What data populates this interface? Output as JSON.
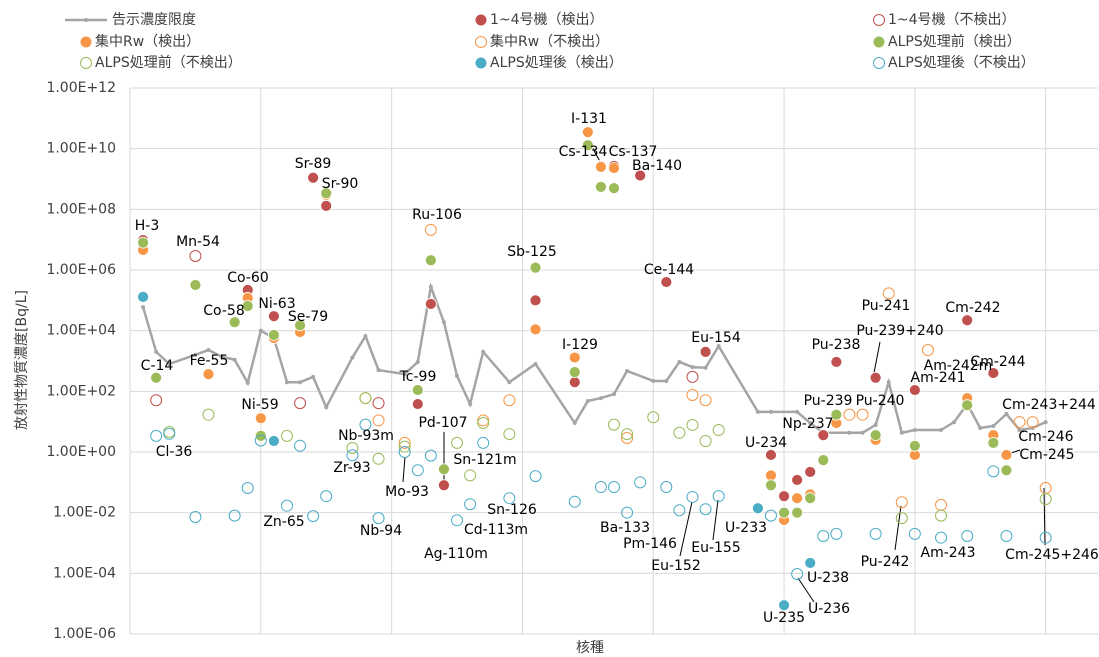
{
  "chart_data": {
    "type": "scatter",
    "yscale": "log",
    "x_label": "核種",
    "y_label": "放射性物質濃度[Bq/L]",
    "xlim": [
      0,
      74
    ],
    "xticks": [
      0,
      10,
      20,
      30,
      40,
      50,
      60,
      70
    ],
    "ylim": [
      1e-06,
      1000000000000.0
    ],
    "yticks": [
      {
        "value": 1e-06,
        "label": "1.00E-06"
      },
      {
        "value": 0.0001,
        "label": "1.00E-04"
      },
      {
        "value": 0.01,
        "label": "1.00E-02"
      },
      {
        "value": 1,
        "label": "1.00E+00"
      },
      {
        "value": 100,
        "label": "1.00E+02"
      },
      {
        "value": 10000,
        "label": "1.00E+04"
      },
      {
        "value": 1000000,
        "label": "1.00E+06"
      },
      {
        "value": 100000000,
        "label": "1.00E+08"
      },
      {
        "value": 10000000000,
        "label": "1.00E+10"
      },
      {
        "value": 1000000000000,
        "label": "1.00E+12"
      }
    ],
    "grid": true,
    "legend": "top",
    "series": [
      {
        "name": "告示濃度限度",
        "color": "#a5a5a5",
        "marker": "line",
        "x": [
          1,
          2,
          3,
          5,
          6,
          7,
          8,
          9,
          10,
          11,
          12,
          13,
          14,
          15,
          17,
          18,
          19,
          21,
          22,
          23,
          24,
          25,
          26,
          27,
          29,
          31,
          34,
          35,
          36,
          37,
          38,
          40,
          41,
          42,
          43,
          44,
          45,
          48,
          49,
          51,
          52,
          53,
          55,
          56,
          57,
          58,
          59,
          60,
          62,
          63,
          64,
          65,
          66,
          67,
          68,
          69,
          70
        ],
        "values": [
          60000.0,
          2000.0,
          800.0,
          1600.0,
          2300.0,
          1400.0,
          1100.0,
          190.0,
          10000.0,
          5700.0,
          200.0,
          200.0,
          300.0,
          30,
          1300.0,
          6600.0,
          500.0,
          370.0,
          930.0,
          280000.0,
          19000.0,
          320.0,
          38,
          2000.0,
          200.0,
          800.0,
          9,
          48,
          60,
          81,
          470.0,
          220.0,
          220.0,
          930.0,
          630.0,
          600.0,
          3100.0,
          21,
          21,
          21,
          9,
          4.3,
          4.3,
          4.3,
          7.8,
          200.0,
          4.3,
          5.3,
          5.3,
          9.7,
          38,
          6.2,
          7.2,
          18,
          5.3,
          6.2,
          9.7
        ]
      },
      {
        "name": "1~4号機（検出）",
        "color": "#c0504d",
        "marker": "filled",
        "x": [
          1,
          9,
          11,
          14,
          15,
          22,
          23,
          24,
          31,
          34,
          36,
          37,
          39,
          41,
          44,
          49,
          50,
          51,
          52,
          53,
          54,
          57,
          60,
          64,
          66
        ],
        "values": [
          9700000.0,
          220000.0,
          30000.0,
          1100000000.0,
          130000000.0,
          38,
          76000.0,
          0.08,
          100000.0,
          200.0,
          2700000000.0,
          2700000000.0,
          1300000000.0,
          400000.0,
          2000.0,
          0.8,
          0.035,
          0.12,
          0.22,
          3.6,
          930.0,
          280.0,
          110.0,
          22000.0,
          400.0
        ]
      },
      {
        "name": "1~4号機（不検出）",
        "color": "#c0504d",
        "marker": "open",
        "x": [
          2,
          5,
          13,
          19,
          43
        ],
        "values": [
          51,
          2900000.0,
          41,
          41,
          300.0
        ]
      },
      {
        "name": "集中Rw（検出）",
        "color": "#f79646",
        "marker": "filled",
        "x": [
          1,
          2,
          6,
          9,
          10,
          11,
          13,
          15,
          31,
          34,
          35,
          36,
          37,
          49,
          50,
          51,
          52,
          54,
          57,
          60,
          64,
          66,
          67
        ],
        "values": [
          4600000.0,
          280.0,
          370.0,
          120000.0,
          13,
          5700.0,
          9000.0,
          300000000.0,
          11000.0,
          1300.0,
          35000000000.0,
          2500000000.0,
          2300000000.0,
          0.17,
          0.0057,
          0.03,
          0.04,
          9,
          2.5,
          0.8,
          60,
          3.6,
          0.8
        ]
      },
      {
        "name": "集中Rw（不検出）",
        "color": "#f79646",
        "marker": "open",
        "x": [
          18,
          19,
          21,
          23,
          27,
          29,
          38,
          43,
          44,
          55,
          56,
          58,
          59,
          61,
          62,
          68,
          69,
          70
        ],
        "values": [
          60,
          11,
          2,
          21000000.0,
          11,
          51,
          2.9,
          76,
          51,
          17,
          17,
          170000.0,
          0.022,
          2300.0,
          0.018,
          9.7,
          9.7,
          0.065
        ]
      },
      {
        "name": "ALPS処理前（検出）",
        "color": "#9bbb59",
        "marker": "filled",
        "x": [
          1,
          2,
          5,
          8,
          9,
          10,
          11,
          13,
          15,
          22,
          23,
          24,
          31,
          34,
          35,
          36,
          37,
          49,
          50,
          51,
          52,
          53,
          54,
          57,
          60,
          64,
          66,
          67
        ],
        "values": [
          8000000.0,
          280.0,
          320000.0,
          19000.0,
          65000.0,
          3.4,
          7200.0,
          15000.0,
          340000000.0,
          110.0,
          2100000.0,
          0.27,
          1200000.0,
          430.0,
          13000000000.0,
          550000000.0,
          500000000.0,
          0.08,
          0.01,
          0.01,
          0.03,
          0.54,
          17,
          3.6,
          1.6,
          35,
          2,
          0.25
        ]
      },
      {
        "name": "ALPS処理前（不検出）",
        "color": "#9bbb59",
        "marker": "open",
        "x": [
          3,
          6,
          12,
          17,
          18,
          19,
          21,
          25,
          26,
          27,
          29,
          37,
          38,
          40,
          42,
          43,
          44,
          45,
          59,
          62,
          70
        ],
        "values": [
          4.6,
          17,
          3.4,
          1.35,
          60,
          0.6,
          1.5,
          2,
          0.17,
          9,
          3.9,
          8,
          3.9,
          14,
          4.3,
          7.8,
          2.3,
          5.3,
          0.0066,
          0.008,
          0.028
        ]
      },
      {
        "name": "ALPS処理後（検出）",
        "color": "#4bacc6",
        "marker": "filled",
        "x": [
          1,
          11,
          48,
          50,
          52
        ],
        "values": [
          130000.0,
          2.3,
          0.014,
          8.9e-06,
          0.00022
        ]
      },
      {
        "name": "ALPS処理後（不検出）",
        "color": "#4bacc6",
        "marker": "open",
        "x": [
          2,
          3,
          5,
          8,
          9,
          10,
          12,
          13,
          14,
          15,
          17,
          18,
          19,
          21,
          22,
          23,
          25,
          26,
          27,
          29,
          31,
          34,
          36,
          37,
          38,
          39,
          41,
          42,
          43,
          44,
          45,
          49,
          51,
          53,
          54,
          57,
          60,
          62,
          64,
          66,
          67,
          70
        ],
        "values": [
          3.4,
          4,
          0.0072,
          0.008,
          0.065,
          2.4,
          0.017,
          1.6,
          0.0077,
          0.035,
          0.78,
          8,
          0.0066,
          1,
          0.25,
          0.76,
          0.0056,
          0.019,
          2,
          0.03,
          0.16,
          0.023,
          0.07,
          0.07,
          0.01,
          0.1,
          0.07,
          0.012,
          0.033,
          0.013,
          0.035,
          0.008,
          9.5e-05,
          0.0017,
          0.002,
          0.002,
          0.002,
          0.0015,
          0.0017,
          0.23,
          0.0017,
          0.0015
        ]
      }
    ],
    "annotations": [
      "H-3",
      "Mn-54",
      "Co-60",
      "Ni-63",
      "Co-58",
      "Se-79",
      "Sr-89",
      "Sr-90",
      "Ru-106",
      "Sb-125",
      "I-131",
      "Cs-134",
      "Cs-137",
      "Ba-140",
      "Ce-144",
      "C-14",
      "Fe-55",
      "Cl-36",
      "Ni-59",
      "I-129",
      "Eu-154",
      "Tc-99",
      "Nb-93m",
      "Zr-93",
      "Mo-93",
      "Pd-107",
      "Sn-121m",
      "Sn-126",
      "Cd-113m",
      "Ag-110m",
      "Zn-65",
      "Nb-94",
      "Ba-133",
      "Pm-146",
      "Eu-152",
      "Eu-155",
      "U-233",
      "U-234",
      "Np-237",
      "Pu-239",
      "Pu-240",
      "Pu-238",
      "Pu-241",
      "Pu-239+240",
      "Am-242m",
      "Am-241",
      "Cm-242",
      "Cm-244",
      "Cm-243+244",
      "Cm-246",
      "Cm-245",
      "Cm-245+246",
      "Pu-242",
      "Am-243",
      "U-238",
      "U-236",
      "U-235"
    ]
  }
}
